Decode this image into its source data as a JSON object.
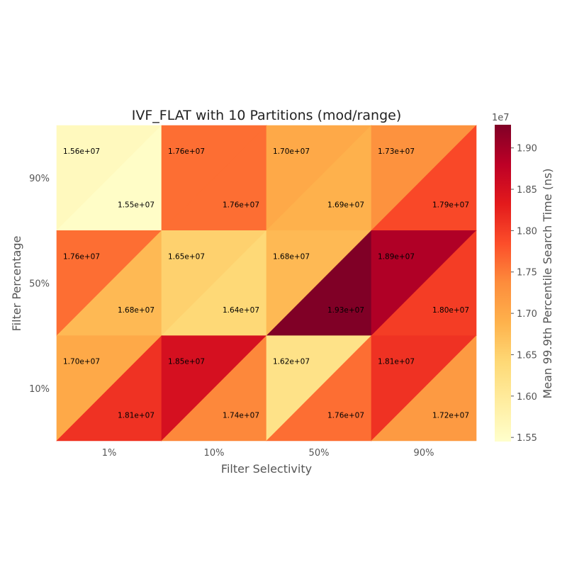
{
  "chart_data": {
    "type": "heatmap",
    "title": "IVF_FLAT with 10 Partitions (mod/range)",
    "xlabel": "Filter Selectivity",
    "ylabel": "Filter Percentage",
    "x_categories": [
      "1%",
      "10%",
      "50%",
      "90%"
    ],
    "y_categories": [
      "90%",
      "50%",
      "10%"
    ],
    "cell_split": "diagonal (upper-left triangle = mod, lower-right triangle = range)",
    "series": [
      {
        "triangle": "upper-left",
        "values": [
          [
            15600000.0,
            17600000.0,
            17000000.0,
            17300000.0
          ],
          [
            17600000.0,
            16500000.0,
            16800000.0,
            18900000.0
          ],
          [
            17000000.0,
            18500000.0,
            16200000.0,
            18100000.0
          ]
        ],
        "labels": [
          [
            "1.56e+07",
            "1.76e+07",
            "1.70e+07",
            "1.73e+07"
          ],
          [
            "1.76e+07",
            "1.65e+07",
            "1.68e+07",
            "1.89e+07"
          ],
          [
            "1.70e+07",
            "1.85e+07",
            "1.62e+07",
            "1.81e+07"
          ]
        ]
      },
      {
        "triangle": "lower-right",
        "values": [
          [
            15500000.0,
            17600000.0,
            16900000.0,
            17900000.0
          ],
          [
            16800000.0,
            16400000.0,
            19300000.0,
            18000000.0
          ],
          [
            18100000.0,
            17400000.0,
            17600000.0,
            17200000.0
          ]
        ],
        "labels": [
          [
            "1.55e+07",
            "1.76e+07",
            "1.69e+07",
            "1.79e+07"
          ],
          [
            "1.68e+07",
            "1.64e+07",
            "1.93e+07",
            "1.80e+07"
          ],
          [
            "1.81e+07",
            "1.74e+07",
            "1.76e+07",
            "1.72e+07"
          ]
        ]
      }
    ],
    "colorbar": {
      "label": "Mean 99.9th Percentile Search Time (ns)",
      "multiplier_label": "1e7",
      "range": [
        15450000.0,
        19280000.0
      ],
      "ticks": [
        1.55,
        1.6,
        1.65,
        1.7,
        1.75,
        1.8,
        1.85,
        1.9
      ],
      "tick_labels": [
        "1.55",
        "1.60",
        "1.65",
        "1.70",
        "1.75",
        "1.80",
        "1.85",
        "1.90"
      ],
      "colormap": "YlOrRd",
      "colormap_stops": [
        "#ffffcc",
        "#ffeda0",
        "#fed976",
        "#feb24c",
        "#fd8d3c",
        "#fc4e2a",
        "#e31a1c",
        "#bd0026",
        "#800026"
      ]
    },
    "grid": false,
    "legend": "none"
  }
}
